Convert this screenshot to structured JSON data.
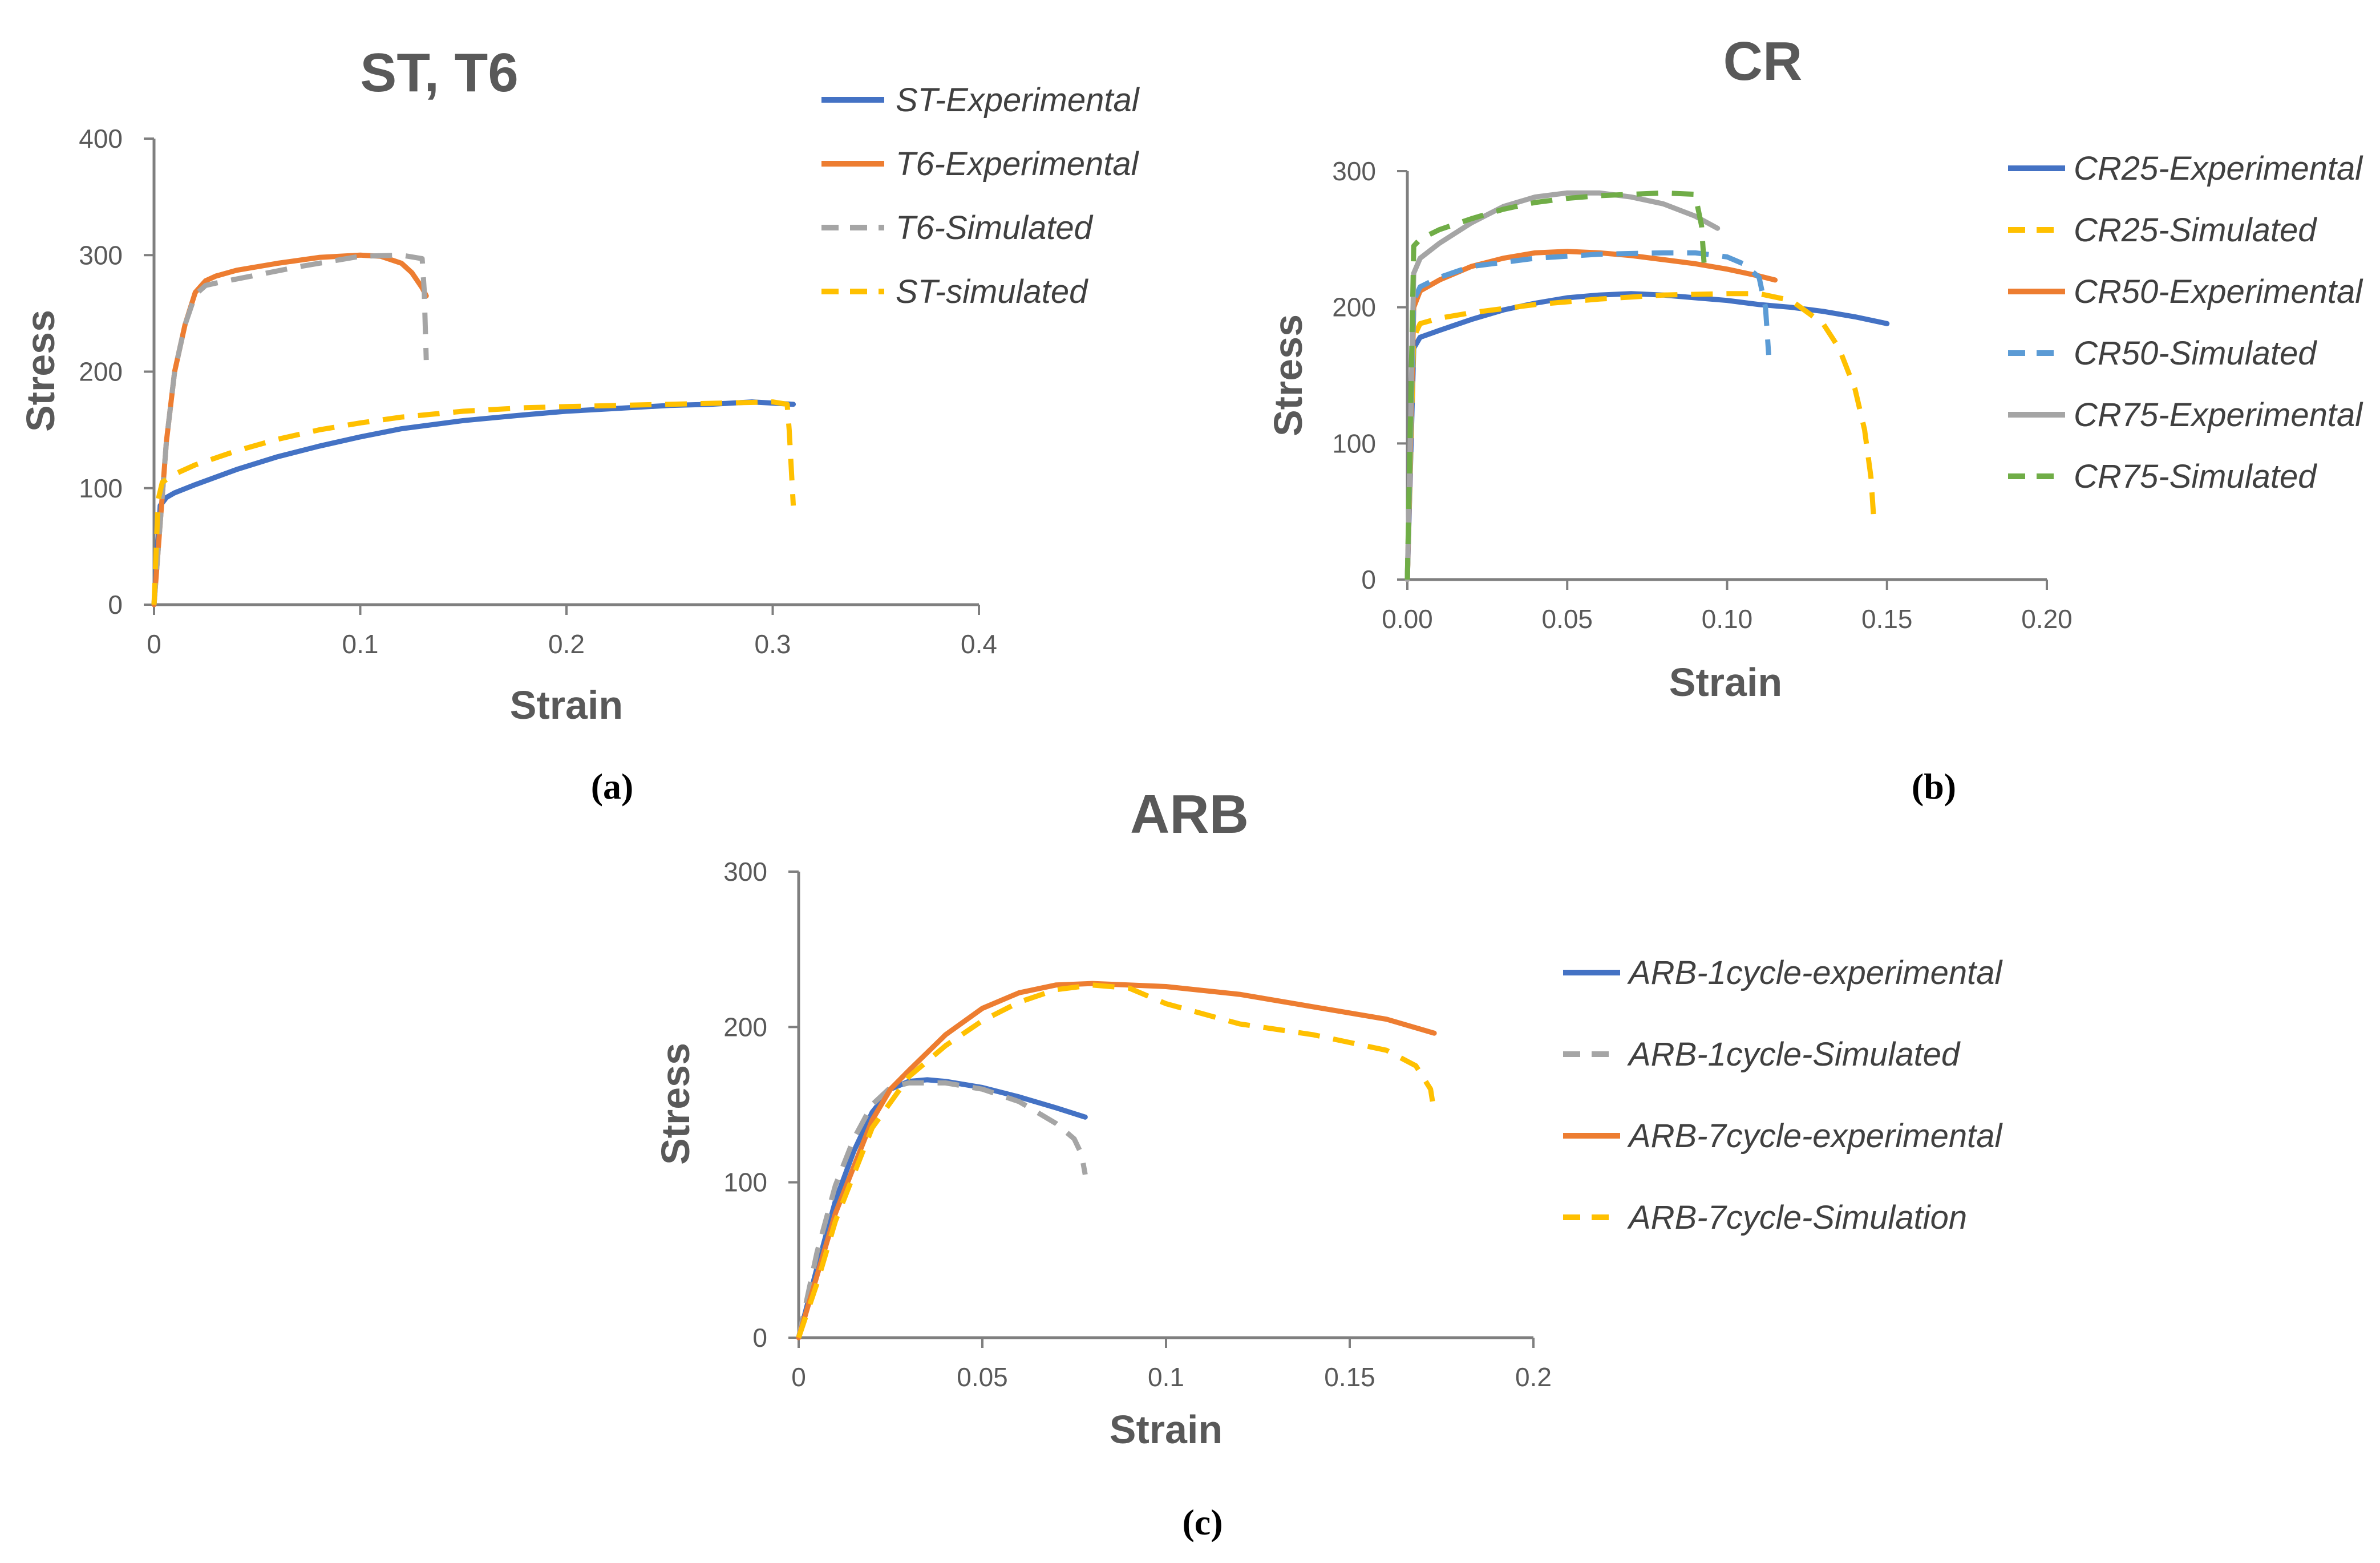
{
  "chart_data": [
    {
      "id": "a",
      "type": "line",
      "title": "ST, T6",
      "xlabel": "Strain",
      "ylabel": "Stress",
      "xlim": [
        0,
        0.4
      ],
      "ylim": [
        0,
        400
      ],
      "xticks": [
        0,
        0.1,
        0.2,
        0.3,
        0.4
      ],
      "xtick_labels": [
        "0",
        "0.1",
        "0.2",
        "0.3",
        "0.4"
      ],
      "yticks": [
        0,
        100,
        200,
        300,
        400
      ],
      "ytick_labels": [
        "0",
        "100",
        "200",
        "300",
        "400"
      ],
      "panel_label": "(a)",
      "legend_position": "right",
      "series": [
        {
          "name": "ST-Experimental",
          "color": "#4472C4",
          "dash": "solid",
          "x": [
            0,
            0.003,
            0.006,
            0.01,
            0.02,
            0.04,
            0.06,
            0.08,
            0.1,
            0.12,
            0.15,
            0.18,
            0.2,
            0.22,
            0.25,
            0.27,
            0.29,
            0.3,
            0.31
          ],
          "y": [
            0,
            85,
            92,
            96,
            103,
            116,
            127,
            136,
            144,
            151,
            158,
            163,
            166,
            168,
            171,
            172,
            174,
            173,
            172
          ]
        },
        {
          "name": "T6-Experimental",
          "color": "#ED7D31",
          "dash": "solid",
          "x": [
            0,
            0.003,
            0.006,
            0.01,
            0.015,
            0.02,
            0.025,
            0.03,
            0.04,
            0.06,
            0.08,
            0.1,
            0.11,
            0.12,
            0.125,
            0.13,
            0.132
          ],
          "y": [
            0,
            70,
            140,
            200,
            240,
            268,
            278,
            282,
            287,
            293,
            298,
            300,
            299,
            293,
            285,
            272,
            265
          ]
        },
        {
          "name": "T6-Simulated",
          "color": "#A5A5A5",
          "dash": "dashed",
          "x": [
            0,
            0.003,
            0.006,
            0.01,
            0.015,
            0.02,
            0.025,
            0.03,
            0.05,
            0.07,
            0.09,
            0.1,
            0.12,
            0.13,
            0.131,
            0.132
          ],
          "y": [
            0,
            70,
            140,
            200,
            240,
            266,
            274,
            276,
            283,
            290,
            296,
            299,
            300,
            297,
            270,
            210
          ]
        },
        {
          "name": "ST-simulated",
          "color": "#FFC000",
          "dash": "dashed",
          "x": [
            0,
            0.002,
            0.004,
            0.01,
            0.02,
            0.04,
            0.06,
            0.08,
            0.1,
            0.12,
            0.15,
            0.18,
            0.2,
            0.25,
            0.3,
            0.307,
            0.308,
            0.31
          ],
          "y": [
            0,
            90,
            105,
            112,
            120,
            132,
            142,
            150,
            156,
            161,
            166,
            169,
            170,
            172,
            174,
            172,
            150,
            85
          ]
        }
      ]
    },
    {
      "id": "b",
      "type": "line",
      "title": "CR",
      "xlabel": "Strain",
      "ylabel": "Stress",
      "xlim": [
        0,
        0.2
      ],
      "ylim": [
        0,
        300
      ],
      "xticks": [
        0,
        0.05,
        0.1,
        0.15,
        0.2
      ],
      "xtick_labels": [
        "0.00",
        "0.05",
        "0.10",
        "0.15",
        "0.20"
      ],
      "yticks": [
        0,
        100,
        200,
        300
      ],
      "ytick_labels": [
        "0",
        "100",
        "200",
        "300"
      ],
      "panel_label": "(b)",
      "legend_position": "right",
      "series": [
        {
          "name": "CR25-Experimental",
          "color": "#4472C4",
          "dash": "solid",
          "x": [
            0,
            0.002,
            0.004,
            0.01,
            0.02,
            0.03,
            0.04,
            0.05,
            0.06,
            0.07,
            0.08,
            0.09,
            0.1,
            0.11,
            0.12,
            0.13,
            0.14,
            0.15
          ],
          "y": [
            0,
            170,
            178,
            183,
            191,
            198,
            203,
            207,
            209,
            210,
            209,
            207,
            205,
            202,
            200,
            197,
            193,
            188
          ]
        },
        {
          "name": "CR25-Simulated",
          "color": "#FFC000",
          "dash": "dashed",
          "x": [
            0,
            0.002,
            0.004,
            0.01,
            0.02,
            0.04,
            0.06,
            0.08,
            0.1,
            0.11,
            0.12,
            0.13,
            0.135,
            0.14,
            0.143,
            0.145,
            0.146
          ],
          "y": [
            0,
            178,
            188,
            192,
            196,
            202,
            206,
            209,
            210,
            210,
            205,
            188,
            170,
            140,
            110,
            75,
            40
          ]
        },
        {
          "name": "CR50-Experimental",
          "color": "#ED7D31",
          "dash": "solid",
          "x": [
            0,
            0.002,
            0.004,
            0.01,
            0.02,
            0.03,
            0.04,
            0.05,
            0.06,
            0.07,
            0.08,
            0.09,
            0.1,
            0.11,
            0.115
          ],
          "y": [
            0,
            200,
            212,
            220,
            230,
            236,
            240,
            241,
            240,
            238,
            235,
            232,
            228,
            223,
            220
          ]
        },
        {
          "name": "CR50-Simulated",
          "color": "#5B9BD5",
          "dash": "dashed",
          "x": [
            0,
            0.002,
            0.004,
            0.01,
            0.02,
            0.04,
            0.06,
            0.08,
            0.09,
            0.1,
            0.105,
            0.11,
            0.112,
            0.113
          ],
          "y": [
            0,
            205,
            215,
            222,
            230,
            236,
            239,
            240,
            240,
            237,
            232,
            222,
            200,
            165
          ]
        },
        {
          "name": "CR75-Experimental",
          "color": "#A5A5A5",
          "dash": "solid",
          "x": [
            0,
            0.002,
            0.004,
            0.01,
            0.02,
            0.03,
            0.04,
            0.05,
            0.06,
            0.07,
            0.08,
            0.09,
            0.097
          ],
          "y": [
            0,
            225,
            236,
            247,
            262,
            274,
            281,
            284,
            284,
            281,
            276,
            267,
            258
          ]
        },
        {
          "name": "CR75-Simulated",
          "color": "#70AD47",
          "dash": "dashed",
          "x": [
            0,
            0.002,
            0.004,
            0.01,
            0.02,
            0.03,
            0.04,
            0.05,
            0.06,
            0.07,
            0.08,
            0.09,
            0.092,
            0.093
          ],
          "y": [
            0,
            245,
            250,
            257,
            265,
            272,
            277,
            280,
            282,
            283,
            284,
            283,
            260,
            225
          ]
        }
      ]
    },
    {
      "id": "c",
      "type": "line",
      "title": "ARB",
      "xlabel": "Strain",
      "ylabel": "Stress",
      "xlim": [
        0,
        0.2
      ],
      "ylim": [
        0,
        300
      ],
      "xticks": [
        0,
        0.05,
        0.1,
        0.15,
        0.2
      ],
      "xtick_labels": [
        "0",
        "0.05",
        "0.1",
        "0.15",
        "0.2"
      ],
      "yticks": [
        0,
        100,
        200,
        300
      ],
      "ytick_labels": [
        "0",
        "100",
        "200",
        "300"
      ],
      "panel_label": "(c)",
      "legend_position": "right",
      "series": [
        {
          "name": "ARB-1cycle-experimental",
          "color": "#4472C4",
          "dash": "solid",
          "x": [
            0,
            0.005,
            0.01,
            0.015,
            0.02,
            0.025,
            0.03,
            0.035,
            0.04,
            0.05,
            0.06,
            0.07,
            0.078
          ],
          "y": [
            0,
            45,
            88,
            120,
            145,
            160,
            165,
            166,
            165,
            161,
            155,
            148,
            142
          ]
        },
        {
          "name": "ARB-1cycle-Simulated",
          "color": "#A5A5A5",
          "dash": "dashed",
          "x": [
            0,
            0.005,
            0.01,
            0.015,
            0.02,
            0.025,
            0.03,
            0.04,
            0.05,
            0.06,
            0.07,
            0.075,
            0.077,
            0.078
          ],
          "y": [
            0,
            55,
            98,
            128,
            150,
            161,
            164,
            164,
            160,
            152,
            138,
            128,
            118,
            105
          ]
        },
        {
          "name": "ARB-7cycle-experimental",
          "color": "#ED7D31",
          "dash": "solid",
          "x": [
            0,
            0.005,
            0.01,
            0.02,
            0.025,
            0.03,
            0.04,
            0.05,
            0.06,
            0.07,
            0.08,
            0.1,
            0.12,
            0.14,
            0.16,
            0.173
          ],
          "y": [
            0,
            40,
            80,
            140,
            160,
            172,
            195,
            212,
            222,
            227,
            228,
            226,
            221,
            213,
            205,
            196
          ]
        },
        {
          "name": "ARB-7cycle-Simulation",
          "color": "#FFC000",
          "dash": "dashed",
          "x": [
            0,
            0.005,
            0.01,
            0.02,
            0.03,
            0.04,
            0.05,
            0.06,
            0.07,
            0.08,
            0.09,
            0.1,
            0.12,
            0.14,
            0.16,
            0.168,
            0.172,
            0.173
          ],
          "y": [
            0,
            35,
            75,
            135,
            168,
            188,
            204,
            216,
            224,
            227,
            225,
            215,
            202,
            195,
            185,
            175,
            160,
            145
          ]
        }
      ]
    }
  ]
}
